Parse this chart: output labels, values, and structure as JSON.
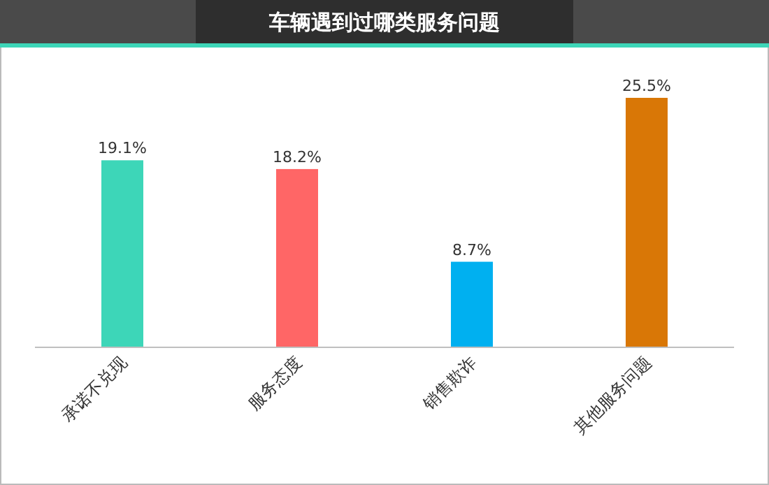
{
  "chart_data": {
    "type": "bar",
    "title": "车辆遇到过哪类服务问题",
    "categories": [
      "承诺不兑现",
      "服务态度",
      "销售欺诈",
      "其他服务问题"
    ],
    "values": [
      19.1,
      18.2,
      8.7,
      25.5
    ],
    "value_labels": [
      "19.1%",
      "18.2%",
      "8.7%",
      "25.5%"
    ],
    "colors": [
      "#3dd6b8",
      "#ff6666",
      "#00b0f0",
      "#d97706"
    ]
  }
}
